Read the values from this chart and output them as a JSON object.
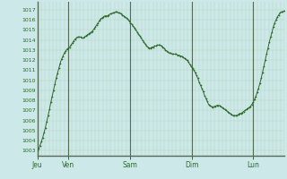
{
  "bg_color": "#cce8e8",
  "grid_color_major": "#556b55",
  "grid_color_minor": "#b8d4b8",
  "line_color": "#2d6a2d",
  "marker_color": "#2d6a2d",
  "axis_label_color": "#2d6a2d",
  "ylim": [
    1002.5,
    1017.8
  ],
  "yticks": [
    1003,
    1004,
    1005,
    1006,
    1007,
    1008,
    1009,
    1010,
    1011,
    1012,
    1013,
    1014,
    1015,
    1016,
    1017
  ],
  "xtick_labels": [
    "Jeu",
    "Ven",
    "Sam",
    "Dim",
    "Lun"
  ],
  "xtick_positions": [
    0,
    24,
    72,
    120,
    168
  ],
  "vline_positions": [
    0,
    24,
    72,
    120,
    168
  ],
  "total_hours": 192,
  "pressure_data": [
    1003.0,
    1003.2,
    1003.5,
    1003.9,
    1004.3,
    1004.8,
    1005.3,
    1005.9,
    1006.5,
    1007.1,
    1007.8,
    1008.4,
    1009.0,
    1009.6,
    1010.2,
    1010.7,
    1011.2,
    1011.7,
    1012.1,
    1012.4,
    1012.7,
    1012.9,
    1013.1,
    1013.2,
    1013.3,
    1013.5,
    1013.7,
    1013.9,
    1014.1,
    1014.2,
    1014.3,
    1014.3,
    1014.3,
    1014.2,
    1014.2,
    1014.3,
    1014.4,
    1014.5,
    1014.6,
    1014.7,
    1014.8,
    1014.9,
    1015.1,
    1015.3,
    1015.5,
    1015.7,
    1015.9,
    1016.1,
    1016.2,
    1016.3,
    1016.4,
    1016.4,
    1016.4,
    1016.5,
    1016.6,
    1016.6,
    1016.7,
    1016.7,
    1016.8,
    1016.8,
    1016.7,
    1016.7,
    1016.6,
    1016.5,
    1016.4,
    1016.3,
    1016.2,
    1016.1,
    1015.9,
    1015.7,
    1015.6,
    1015.4,
    1015.2,
    1015.0,
    1014.8,
    1014.6,
    1014.4,
    1014.2,
    1014.0,
    1013.8,
    1013.6,
    1013.4,
    1013.3,
    1013.2,
    1013.2,
    1013.3,
    1013.3,
    1013.4,
    1013.4,
    1013.5,
    1013.5,
    1013.5,
    1013.4,
    1013.3,
    1013.2,
    1013.0,
    1012.9,
    1012.8,
    1012.7,
    1012.7,
    1012.6,
    1012.6,
    1012.6,
    1012.6,
    1012.5,
    1012.5,
    1012.4,
    1012.4,
    1012.3,
    1012.2,
    1012.1,
    1012.0,
    1011.8,
    1011.6,
    1011.4,
    1011.2,
    1011.0,
    1010.8,
    1010.5,
    1010.2,
    1009.8,
    1009.5,
    1009.2,
    1008.9,
    1008.5,
    1008.2,
    1007.9,
    1007.6,
    1007.5,
    1007.4,
    1007.3,
    1007.4,
    1007.4,
    1007.5,
    1007.5,
    1007.5,
    1007.4,
    1007.3,
    1007.2,
    1007.1,
    1007.0,
    1006.9,
    1006.8,
    1006.7,
    1006.6,
    1006.5,
    1006.5,
    1006.5,
    1006.5,
    1006.6,
    1006.7,
    1006.7,
    1006.8,
    1006.9,
    1007.0,
    1007.1,
    1007.2,
    1007.3,
    1007.4,
    1007.6,
    1007.8,
    1008.1,
    1008.4,
    1008.8,
    1009.2,
    1009.7,
    1010.2,
    1010.8,
    1011.4,
    1012.0,
    1012.6,
    1013.2,
    1013.8,
    1014.3,
    1014.8,
    1015.3,
    1015.7,
    1016.0,
    1016.3,
    1016.5,
    1016.7,
    1016.8,
    1016.8,
    1016.9
  ]
}
